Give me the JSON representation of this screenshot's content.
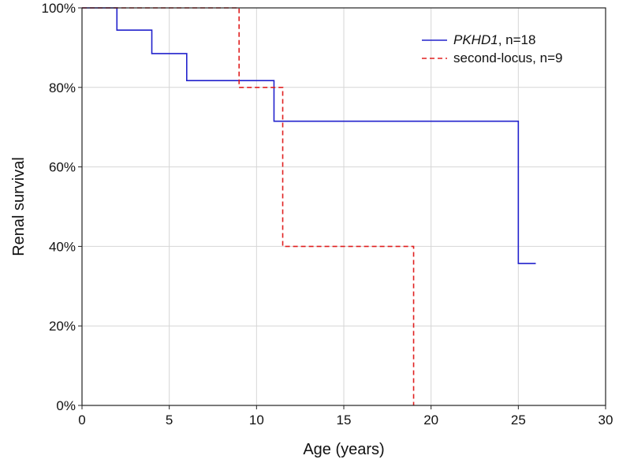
{
  "chart_data": {
    "type": "line",
    "subtype": "kaplan-meier step curve",
    "xlabel": "Age (years)",
    "ylabel": "Renal survival",
    "xlim": [
      0,
      30
    ],
    "ylim": [
      0,
      100
    ],
    "x_ticks": [
      0,
      5,
      10,
      15,
      20,
      25,
      30
    ],
    "y_ticks": [
      0,
      20,
      40,
      60,
      80,
      100
    ],
    "y_tick_labels": [
      "0%",
      "20%",
      "40%",
      "60%",
      "80%",
      "100%"
    ],
    "grid": true,
    "legend_position": "top-right",
    "series": [
      {
        "name": "PKHD1",
        "legend_suffix": ", n=18",
        "color": "#2222cc",
        "line_style": "solid",
        "points": [
          [
            0,
            100
          ],
          [
            2,
            94.4
          ],
          [
            4,
            88.5
          ],
          [
            6,
            81.7
          ],
          [
            11,
            71.5
          ],
          [
            25,
            35.7
          ],
          [
            26,
            35.7
          ]
        ]
      },
      {
        "name": "second-locus",
        "legend_suffix": ", n=9",
        "color": "#e02020",
        "line_style": "dashed",
        "points": [
          [
            0,
            100
          ],
          [
            9,
            80
          ],
          [
            11.5,
            40
          ],
          [
            19,
            0
          ]
        ]
      }
    ]
  }
}
